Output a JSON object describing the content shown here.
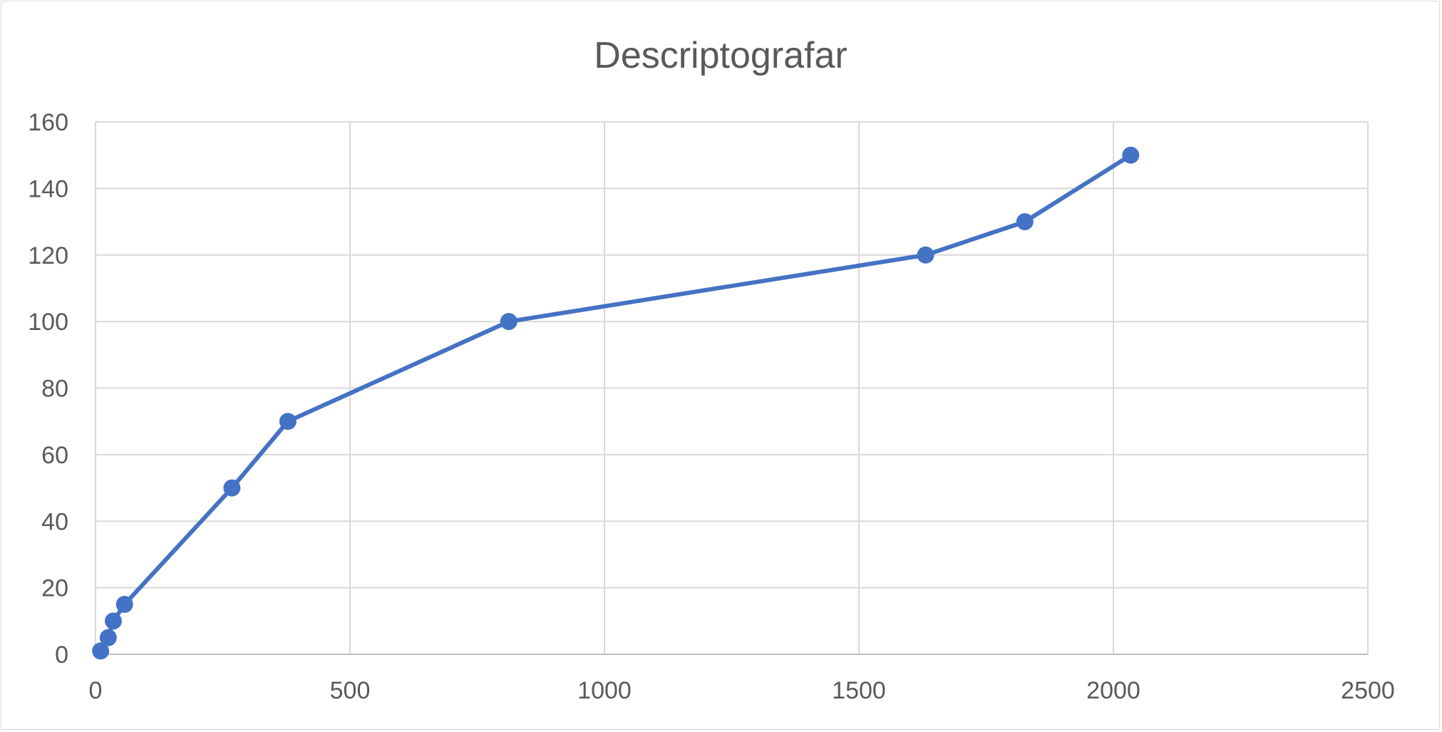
{
  "chart_data": {
    "type": "scatter",
    "title": "Descriptografar",
    "xlabel": "",
    "ylabel": "",
    "xlim": [
      0,
      2500
    ],
    "ylim": [
      0,
      160
    ],
    "x_ticks": [
      0,
      500,
      1000,
      1500,
      2000,
      2500
    ],
    "y_ticks": [
      0,
      20,
      40,
      60,
      80,
      100,
      120,
      140,
      160
    ],
    "grid": true,
    "legend": "none",
    "series": [
      {
        "color": "#4472c4",
        "marker": "circle",
        "line": true,
        "x": [
          10,
          25,
          35,
          57,
          268,
          378,
          812,
          1631,
          1826,
          2034
        ],
        "y": [
          1,
          5,
          10,
          15,
          50,
          70,
          100,
          120,
          130,
          150
        ]
      }
    ]
  }
}
